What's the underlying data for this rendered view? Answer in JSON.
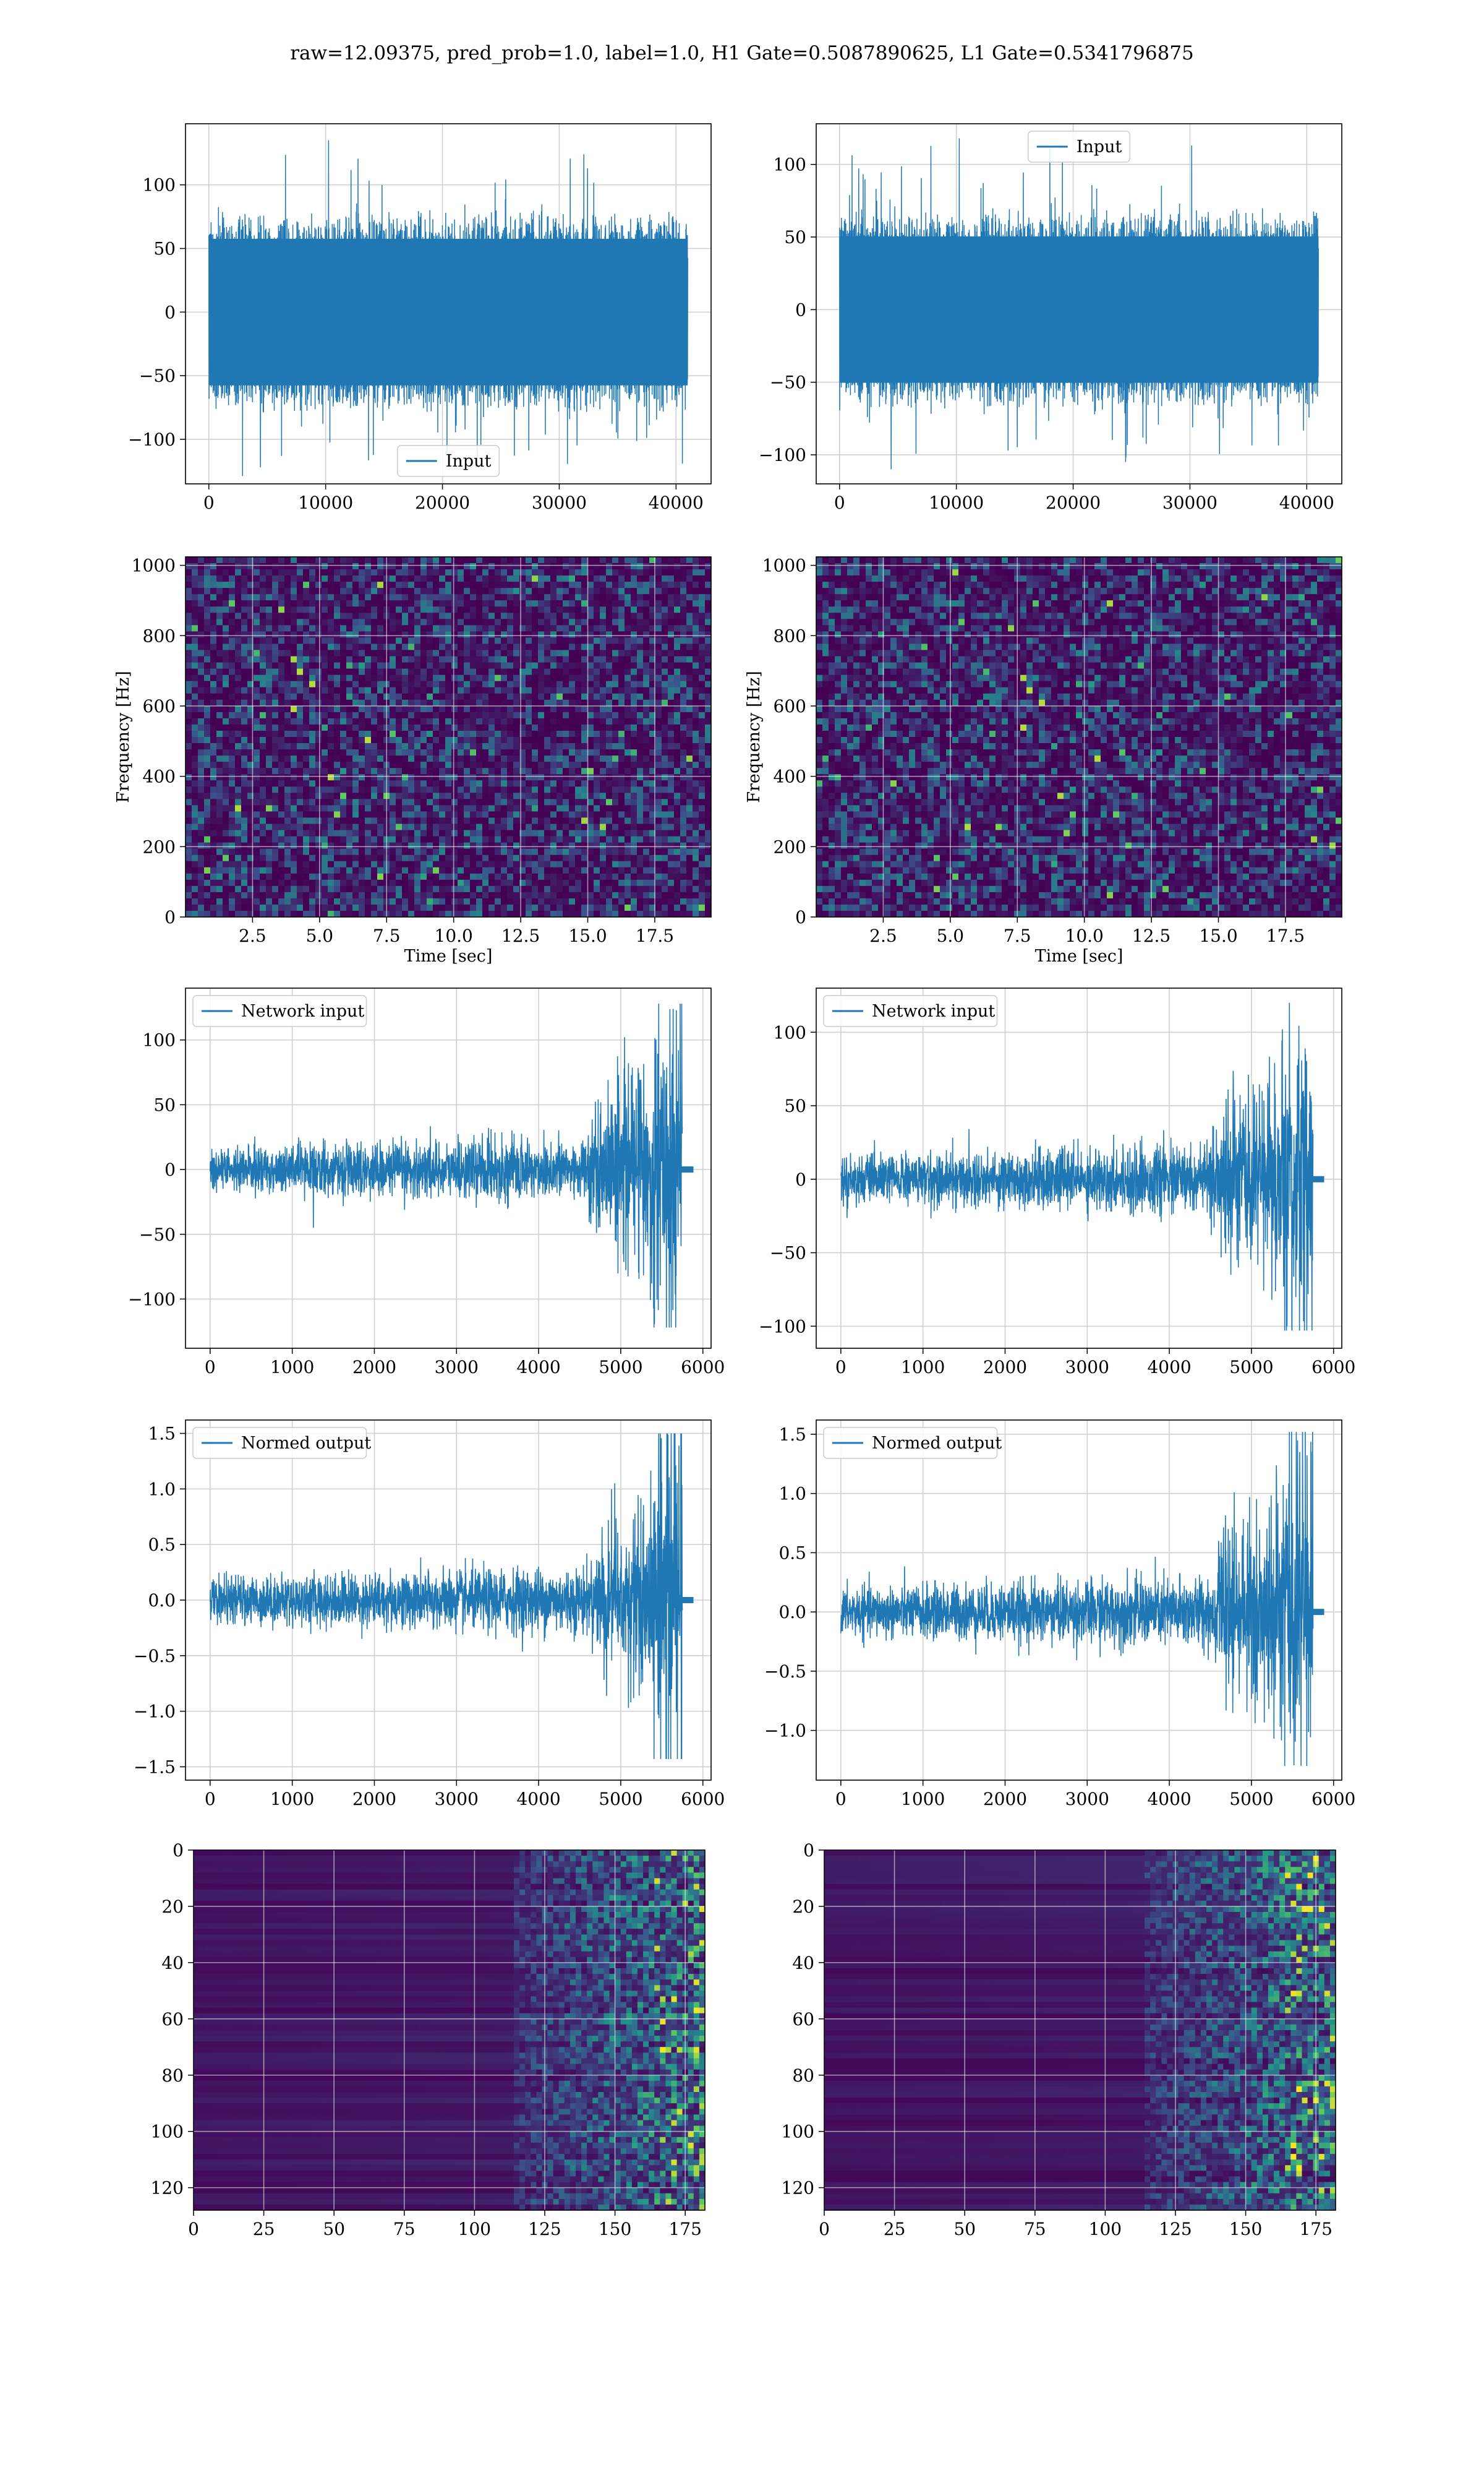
{
  "figure": {
    "title": "raw=12.09375, pred_prob=1.0, label=1.0, H1 Gate=0.5087890625, L1 Gate=0.5341796875"
  },
  "colors": {
    "line": "#1f77b4",
    "grid": "#d0d0d0",
    "viridis_dark": "#440154",
    "viridis_mid": "#21918c",
    "viridis_light": "#5ec962",
    "viridis_bright": "#fde725"
  },
  "chart_data": [
    {
      "id": "h1-input",
      "type": "line",
      "series": [
        {
          "name": "Input",
          "x_max": 41000,
          "envelope_typical": 80,
          "peak_max": 135,
          "peak_min": -122
        }
      ],
      "xlabel": "",
      "ylabel": "",
      "xlim": [
        -2000,
        43000
      ],
      "ylim": [
        -135,
        148
      ],
      "xticks": [
        "0",
        "10000",
        "20000",
        "30000",
        "40000"
      ],
      "xtick_values": [
        0,
        10000,
        20000,
        30000,
        40000
      ],
      "yticks": [
        "−100",
        "−50",
        "0",
        "50",
        "100"
      ],
      "ytick_values": [
        -100,
        -50,
        0,
        50,
        100
      ],
      "legend": "lower center",
      "grid": true
    },
    {
      "id": "l1-input",
      "type": "line",
      "series": [
        {
          "name": "Input",
          "x_max": 41000,
          "envelope_typical": 70,
          "peak_max": 118,
          "peak_min": -110
        }
      ],
      "xlabel": "",
      "ylabel": "",
      "xlim": [
        -2000,
        43000
      ],
      "ylim": [
        -120,
        128
      ],
      "xticks": [
        "0",
        "10000",
        "20000",
        "30000",
        "40000"
      ],
      "xtick_values": [
        0,
        10000,
        20000,
        30000,
        40000
      ],
      "yticks": [
        "−100",
        "−50",
        "0",
        "50",
        "100"
      ],
      "ytick_values": [
        -100,
        -50,
        0,
        50,
        100
      ],
      "legend": "upper center",
      "grid": true
    },
    {
      "id": "h1-spectrogram",
      "type": "heatmap",
      "colormap": "viridis",
      "xlabel": "Time [sec]",
      "ylabel": "Frequency [Hz]",
      "xlim": [
        0,
        19.6
      ],
      "ylim": [
        0,
        1024
      ],
      "xticks": [
        "2.5",
        "5.0",
        "7.5",
        "10.0",
        "12.5",
        "15.0",
        "17.5"
      ],
      "xtick_values": [
        2.5,
        5.0,
        7.5,
        10.0,
        12.5,
        15.0,
        17.5
      ],
      "yticks": [
        "0",
        "200",
        "400",
        "600",
        "800",
        "1000"
      ],
      "ytick_values": [
        0,
        200,
        400,
        600,
        800,
        1000
      ],
      "grid": true
    },
    {
      "id": "l1-spectrogram",
      "type": "heatmap",
      "colormap": "viridis",
      "xlabel": "Time [sec]",
      "ylabel": "Frequency [Hz]",
      "xlim": [
        0,
        19.6
      ],
      "ylim": [
        0,
        1024
      ],
      "xticks": [
        "2.5",
        "5.0",
        "7.5",
        "10.0",
        "12.5",
        "15.0",
        "17.5"
      ],
      "xtick_values": [
        2.5,
        5.0,
        7.5,
        10.0,
        12.5,
        15.0,
        17.5
      ],
      "yticks": [
        "0",
        "200",
        "400",
        "600",
        "800",
        "1000"
      ],
      "ytick_values": [
        0,
        200,
        400,
        600,
        800,
        1000
      ],
      "grid": true
    },
    {
      "id": "h1-network-input",
      "type": "line",
      "series": [
        {
          "name": "Network input",
          "x_max": 5750,
          "baseline_amp": 15,
          "burst_start": 4600,
          "peak_max": 128,
          "peak_min": -122
        }
      ],
      "xlabel": "",
      "ylabel": "",
      "xlim": [
        -300,
        6100
      ],
      "ylim": [
        -138,
        140
      ],
      "xticks": [
        "0",
        "1000",
        "2000",
        "3000",
        "4000",
        "5000",
        "6000"
      ],
      "xtick_values": [
        0,
        1000,
        2000,
        3000,
        4000,
        5000,
        6000
      ],
      "yticks": [
        "−100",
        "−50",
        "0",
        "50",
        "100"
      ],
      "ytick_values": [
        -100,
        -50,
        0,
        50,
        100
      ],
      "legend": "upper left",
      "grid": true
    },
    {
      "id": "l1-network-input",
      "type": "line",
      "series": [
        {
          "name": "Network input",
          "x_max": 5750,
          "baseline_amp": 14,
          "burst_start": 4500,
          "peak_max": 120,
          "peak_min": -103
        }
      ],
      "xlabel": "",
      "ylabel": "",
      "xlim": [
        -300,
        6100
      ],
      "ylim": [
        -115,
        130
      ],
      "xticks": [
        "0",
        "1000",
        "2000",
        "3000",
        "4000",
        "5000",
        "6000"
      ],
      "xtick_values": [
        0,
        1000,
        2000,
        3000,
        4000,
        5000,
        6000
      ],
      "yticks": [
        "−100",
        "−50",
        "0",
        "50",
        "100"
      ],
      "ytick_values": [
        -100,
        -50,
        0,
        50,
        100
      ],
      "legend": "upper left",
      "grid": true
    },
    {
      "id": "h1-normed-output",
      "type": "line",
      "series": [
        {
          "name": "Normed output",
          "x_max": 5750,
          "baseline_amp": 0.18,
          "burst_start": 4600,
          "peak_max": 1.5,
          "peak_min": -1.43
        }
      ],
      "xlabel": "",
      "ylabel": "",
      "xlim": [
        -300,
        6100
      ],
      "ylim": [
        -1.62,
        1.62
      ],
      "xticks": [
        "0",
        "1000",
        "2000",
        "3000",
        "4000",
        "5000",
        "6000"
      ],
      "xtick_values": [
        0,
        1000,
        2000,
        3000,
        4000,
        5000,
        6000
      ],
      "yticks": [
        "−1.5",
        "−1.0",
        "−0.5",
        "0.0",
        "0.5",
        "1.0",
        "1.5"
      ],
      "ytick_values": [
        -1.5,
        -1.0,
        -0.5,
        0.0,
        0.5,
        1.0,
        1.5
      ],
      "legend": "upper left",
      "grid": true
    },
    {
      "id": "l1-normed-output",
      "type": "line",
      "series": [
        {
          "name": "Normed output",
          "x_max": 5750,
          "baseline_amp": 0.18,
          "burst_start": 4500,
          "peak_max": 1.52,
          "peak_min": -1.3
        }
      ],
      "xlabel": "",
      "ylabel": "",
      "xlim": [
        -300,
        6100
      ],
      "ylim": [
        -1.42,
        1.62
      ],
      "xticks": [
        "0",
        "1000",
        "2000",
        "3000",
        "4000",
        "5000",
        "6000"
      ],
      "xtick_values": [
        0,
        1000,
        2000,
        3000,
        4000,
        5000,
        6000
      ],
      "yticks": [
        "−1.0",
        "−0.5",
        "0.0",
        "0.5",
        "1.0",
        "1.5"
      ],
      "ytick_values": [
        -1.0,
        -0.5,
        0.0,
        0.5,
        1.0,
        1.5
      ],
      "legend": "upper left",
      "grid": true
    },
    {
      "id": "h1-features",
      "type": "heatmap",
      "colormap": "viridis",
      "xlabel": "",
      "ylabel": "",
      "xlim": [
        0,
        182
      ],
      "ylim": [
        128,
        0
      ],
      "xticks": [
        "0",
        "25",
        "50",
        "75",
        "100",
        "125",
        "150",
        "175"
      ],
      "xtick_values": [
        0,
        25,
        50,
        75,
        100,
        125,
        150,
        175
      ],
      "yticks": [
        "0",
        "20",
        "40",
        "60",
        "80",
        "100",
        "120"
      ],
      "ytick_values": [
        0,
        20,
        40,
        60,
        80,
        100,
        120
      ],
      "grid": true
    },
    {
      "id": "l1-features",
      "type": "heatmap",
      "colormap": "viridis",
      "xlabel": "",
      "ylabel": "",
      "xlim": [
        0,
        182
      ],
      "ylim": [
        128,
        0
      ],
      "xticks": [
        "0",
        "25",
        "50",
        "75",
        "100",
        "125",
        "150",
        "175"
      ],
      "xtick_values": [
        0,
        25,
        50,
        75,
        100,
        125,
        150,
        175
      ],
      "yticks": [
        "0",
        "20",
        "40",
        "60",
        "80",
        "100",
        "120"
      ],
      "ytick_values": [
        0,
        20,
        40,
        60,
        80,
        100,
        120
      ],
      "grid": true
    }
  ]
}
